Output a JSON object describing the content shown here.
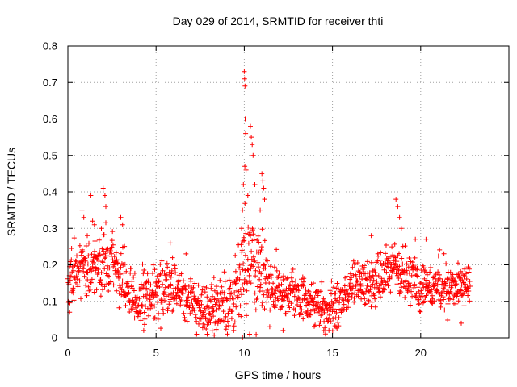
{
  "chart_data": {
    "type": "scatter",
    "title": "Day 029 of 2014, SRMTID for receiver thti",
    "xlabel": "GPS time / hours",
    "ylabel": "SRMTID / TECUs",
    "xlim": [
      0,
      25
    ],
    "ylim": [
      0,
      0.8
    ],
    "xticks": [
      "0",
      "5",
      "10",
      "15",
      "20"
    ],
    "yticks": [
      "0",
      "0.1",
      "0.2",
      "0.3",
      "0.4",
      "0.5",
      "0.6",
      "0.7",
      "0.8"
    ],
    "grid": true,
    "marker": "plus",
    "color": "#ff0000",
    "series_name": "SRMTID",
    "trend": [
      [
        0.0,
        0.16
      ],
      [
        0.5,
        0.19
      ],
      [
        1.0,
        0.2
      ],
      [
        1.5,
        0.2
      ],
      [
        2.0,
        0.21
      ],
      [
        2.5,
        0.21
      ],
      [
        3.0,
        0.17
      ],
      [
        3.5,
        0.13
      ],
      [
        4.0,
        0.11
      ],
      [
        4.5,
        0.11
      ],
      [
        5.0,
        0.12
      ],
      [
        5.5,
        0.13
      ],
      [
        6.0,
        0.14
      ],
      [
        6.5,
        0.12
      ],
      [
        7.0,
        0.1
      ],
      [
        7.5,
        0.09
      ],
      [
        8.0,
        0.08
      ],
      [
        8.5,
        0.09
      ],
      [
        9.0,
        0.1
      ],
      [
        9.5,
        0.12
      ],
      [
        9.8,
        0.16
      ],
      [
        10.0,
        0.22
      ],
      [
        10.3,
        0.22
      ],
      [
        10.6,
        0.18
      ],
      [
        11.0,
        0.16
      ],
      [
        11.5,
        0.14
      ],
      [
        12.0,
        0.13
      ],
      [
        12.5,
        0.12
      ],
      [
        13.0,
        0.12
      ],
      [
        13.5,
        0.11
      ],
      [
        14.0,
        0.09
      ],
      [
        14.5,
        0.08
      ],
      [
        15.0,
        0.08
      ],
      [
        15.5,
        0.1
      ],
      [
        16.0,
        0.13
      ],
      [
        16.5,
        0.15
      ],
      [
        17.0,
        0.15
      ],
      [
        17.5,
        0.16
      ],
      [
        18.0,
        0.18
      ],
      [
        18.5,
        0.19
      ],
      [
        19.0,
        0.18
      ],
      [
        19.5,
        0.16
      ],
      [
        20.0,
        0.15
      ],
      [
        20.5,
        0.14
      ],
      [
        21.0,
        0.14
      ],
      [
        21.5,
        0.14
      ],
      [
        22.0,
        0.14
      ],
      [
        22.5,
        0.15
      ],
      [
        22.8,
        0.15
      ]
    ],
    "spread": [
      [
        0.0,
        0.05
      ],
      [
        2.0,
        0.06
      ],
      [
        3.0,
        0.05
      ],
      [
        5.0,
        0.05
      ],
      [
        8.0,
        0.04
      ],
      [
        9.5,
        0.06
      ],
      [
        10.0,
        0.1
      ],
      [
        11.0,
        0.07
      ],
      [
        12.0,
        0.05
      ],
      [
        14.0,
        0.04
      ],
      [
        16.0,
        0.04
      ],
      [
        18.0,
        0.05
      ],
      [
        20.0,
        0.05
      ],
      [
        22.8,
        0.04
      ]
    ],
    "spikes": [
      {
        "x": 0.8,
        "y": 0.35
      },
      {
        "x": 0.9,
        "y": 0.33
      },
      {
        "x": 1.1,
        "y": 0.28
      },
      {
        "x": 1.3,
        "y": 0.39
      },
      {
        "x": 1.4,
        "y": 0.32
      },
      {
        "x": 1.5,
        "y": 0.31
      },
      {
        "x": 1.9,
        "y": 0.3
      },
      {
        "x": 2.0,
        "y": 0.41
      },
      {
        "x": 2.1,
        "y": 0.39
      },
      {
        "x": 2.15,
        "y": 0.36
      },
      {
        "x": 3.0,
        "y": 0.33
      },
      {
        "x": 3.1,
        "y": 0.31
      },
      {
        "x": 5.8,
        "y": 0.26
      },
      {
        "x": 6.7,
        "y": 0.23
      },
      {
        "x": 9.85,
        "y": 0.3
      },
      {
        "x": 9.9,
        "y": 0.35
      },
      {
        "x": 9.95,
        "y": 0.42
      },
      {
        "x": 10.0,
        "y": 0.73
      },
      {
        "x": 10.02,
        "y": 0.71
      },
      {
        "x": 10.04,
        "y": 0.69
      },
      {
        "x": 10.05,
        "y": 0.6
      },
      {
        "x": 10.08,
        "y": 0.56
      },
      {
        "x": 10.03,
        "y": 0.47
      },
      {
        "x": 10.1,
        "y": 0.46
      },
      {
        "x": 10.2,
        "y": 0.39
      },
      {
        "x": 10.35,
        "y": 0.58
      },
      {
        "x": 10.4,
        "y": 0.55
      },
      {
        "x": 10.45,
        "y": 0.53
      },
      {
        "x": 10.5,
        "y": 0.5
      },
      {
        "x": 10.6,
        "y": 0.42
      },
      {
        "x": 11.0,
        "y": 0.45
      },
      {
        "x": 11.05,
        "y": 0.43
      },
      {
        "x": 11.1,
        "y": 0.41
      },
      {
        "x": 11.15,
        "y": 0.38
      },
      {
        "x": 10.9,
        "y": 0.35
      },
      {
        "x": 18.6,
        "y": 0.38
      },
      {
        "x": 18.7,
        "y": 0.36
      },
      {
        "x": 18.8,
        "y": 0.33
      },
      {
        "x": 18.9,
        "y": 0.3
      },
      {
        "x": 17.2,
        "y": 0.28
      },
      {
        "x": 19.7,
        "y": 0.27
      },
      {
        "x": 20.3,
        "y": 0.27
      }
    ],
    "dips": [
      {
        "x": 0.1,
        "y": 0.07
      },
      {
        "x": 4.3,
        "y": 0.02
      },
      {
        "x": 7.3,
        "y": 0.01
      },
      {
        "x": 7.9,
        "y": 0.01
      },
      {
        "x": 9.4,
        "y": 0.02
      },
      {
        "x": 9.9,
        "y": 0.0
      },
      {
        "x": 10.3,
        "y": 0.01
      },
      {
        "x": 12.2,
        "y": 0.02
      },
      {
        "x": 14.8,
        "y": 0.02
      },
      {
        "x": 15.2,
        "y": 0.03
      },
      {
        "x": 22.3,
        "y": 0.04
      }
    ],
    "sample_count": 1400,
    "x_max_observed": 22.8
  }
}
